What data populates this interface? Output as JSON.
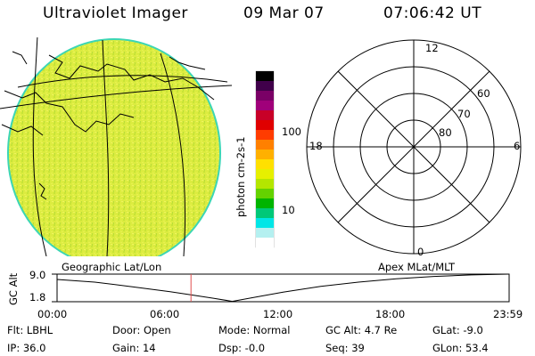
{
  "header": {
    "title": "Ultraviolet Imager",
    "date": "09 Mar 07",
    "time": "07:06:42 UT"
  },
  "colorbar": {
    "label": "photon cm-2s-1",
    "ticks": [
      {
        "label": "100",
        "value": 100
      },
      {
        "label": "10",
        "value": 10
      }
    ],
    "colors": [
      "#000000",
      "#40004a",
      "#7a0066",
      "#a0007a",
      "#c80028",
      "#e00000",
      "#ff3c00",
      "#ff8000",
      "#ffb000",
      "#ffe000",
      "#e6f000",
      "#b4e600",
      "#64d200",
      "#00b400",
      "#00c878",
      "#00e6e6",
      "#b4f0f0",
      "#ffffff"
    ]
  },
  "polar": {
    "mlt_labels": {
      "top": "12",
      "left": "18",
      "right": "6",
      "bottom": "0"
    },
    "lat_labels": [
      "60",
      "70",
      "80"
    ]
  },
  "timeline": {
    "left_title": "Geographic Lat/Lon",
    "right_title": "Apex MLat/MLT",
    "axis_label": "GC Alt",
    "y_max": "9.0",
    "y_min": "1.8",
    "x_ticks": [
      "00:00",
      "06:00",
      "12:00",
      "18:00",
      "23:59"
    ],
    "current_hour": 7.11,
    "x_range": [
      0,
      24
    ],
    "y_range": [
      1.8,
      9.0
    ]
  },
  "info": {
    "flt": "Flt: LBHL",
    "ip": "IP: 36.0",
    "door": "Door: Open",
    "gain": "Gain: 14",
    "mode": "Mode: Normal",
    "dsp": "Dsp:   -0.0",
    "gcalt": "GC Alt: 4.7 Re",
    "seq": "Seq: 39",
    "glat": "GLat:   -9.0",
    "glon": "GLon:  53.4"
  }
}
